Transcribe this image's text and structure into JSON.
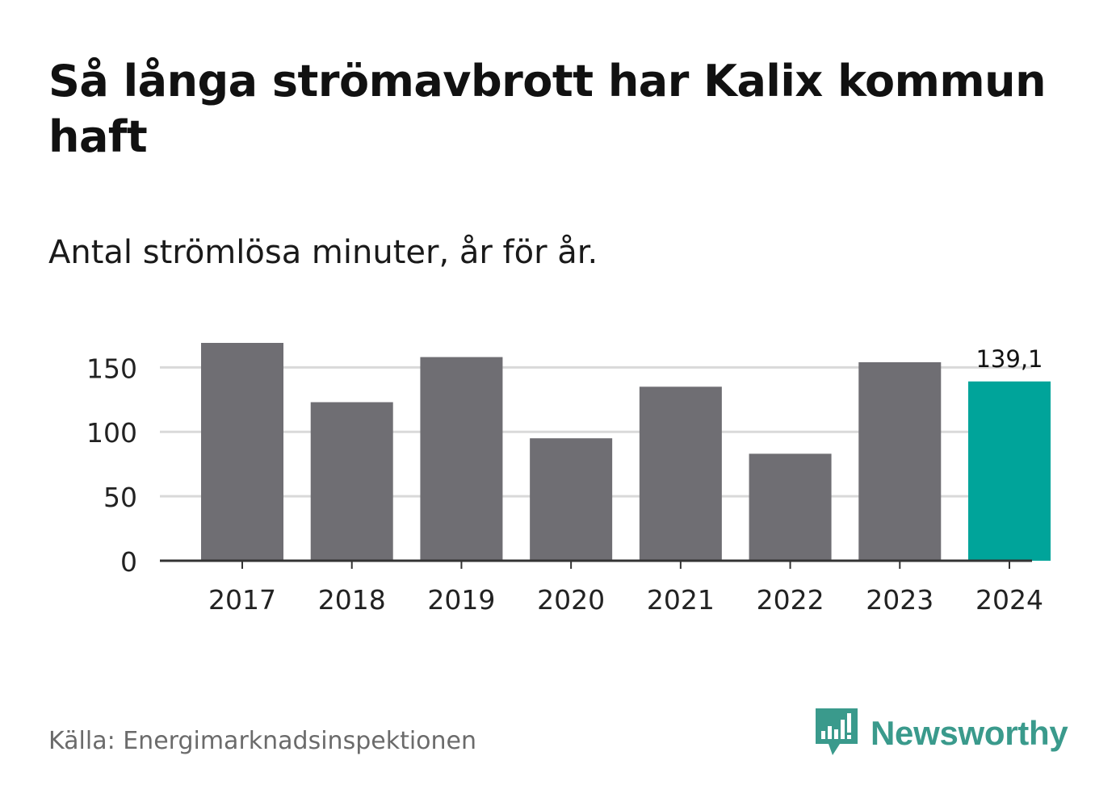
{
  "header": {
    "title": "Så långa strömavbrott har Kalix kommun haft",
    "subtitle": "Antal strömlösa minuter, år för år."
  },
  "footer": {
    "source": "Källa: Energimarknadsinspektionen",
    "brand": "Newsworthy",
    "brand_icon": "newsworthy-logo-icon"
  },
  "colors": {
    "bar": "#6f6e73",
    "highlight": "#00a49a",
    "grid": "#d9d9d9",
    "axis": "#333333",
    "brand": "#3a9a8c"
  },
  "chart_data": {
    "type": "bar",
    "title": "Så långa strömavbrott har Kalix kommun haft",
    "subtitle": "Antal strömlösa minuter, år för år.",
    "categories": [
      "2017",
      "2018",
      "2019",
      "2020",
      "2021",
      "2022",
      "2023",
      "2024"
    ],
    "values": [
      169,
      123,
      158,
      95,
      135,
      83,
      154,
      139.1
    ],
    "highlight_index": 7,
    "data_labels": [
      {
        "index": 7,
        "text": "139,1"
      }
    ],
    "yticks": [
      "0",
      "50",
      "100",
      "150"
    ],
    "ylim": [
      0,
      169
    ],
    "grid": true,
    "legend": "none"
  }
}
